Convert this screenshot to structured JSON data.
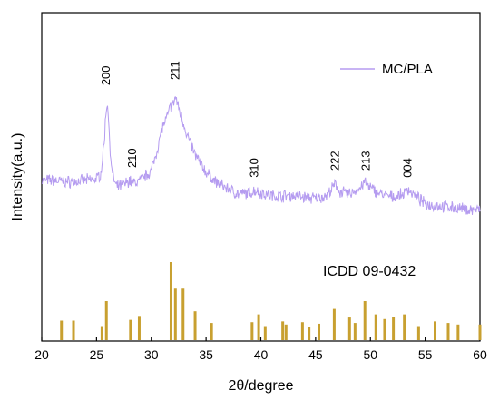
{
  "chart_data": {
    "type": "line",
    "xlabel": "2θ/degree",
    "ylabel": "Intensity(a.u.)",
    "xlim": [
      20,
      60
    ],
    "xticks": [
      "20",
      "25",
      "30",
      "35",
      "40",
      "45",
      "50",
      "55",
      "60"
    ],
    "yticks_shown": false,
    "grid": false,
    "legend": {
      "placement": "top-right",
      "label": "MC/PLA",
      "color": "#b59cf0"
    },
    "series": [
      {
        "name": "MC/PLA",
        "color": "#b59cf0",
        "x": [
          20.0,
          21.0,
          22.0,
          23.0,
          24.0,
          25.0,
          25.4,
          25.7,
          25.85,
          26.0,
          26.15,
          26.4,
          26.8,
          27.5,
          28.0,
          28.4,
          29.0,
          30.0,
          30.6,
          31.0,
          31.4,
          31.7,
          32.0,
          32.2,
          32.5,
          32.9,
          33.3,
          34.0,
          35.0,
          36.0,
          37.0,
          38.0,
          39.0,
          39.5,
          40.0,
          41.0,
          42.0,
          43.0,
          44.0,
          45.0,
          46.0,
          46.5,
          46.8,
          47.2,
          48.0,
          49.0,
          49.5,
          49.9,
          51.0,
          52.0,
          53.0,
          53.4,
          53.8,
          55.0,
          56.0,
          57.0,
          58.0,
          59.0,
          60.0
        ],
        "y": [
          28,
          28,
          27,
          27,
          28,
          29,
          33,
          55,
          75,
          85,
          62,
          34,
          23,
          25,
          28,
          26,
          28,
          35,
          52,
          66,
          72,
          80,
          82,
          88,
          80,
          70,
          60,
          46,
          34,
          26,
          22,
          18,
          19,
          21,
          19,
          17,
          17,
          17,
          16,
          15,
          17,
          22,
          25,
          20,
          18,
          22,
          27,
          23,
          18,
          16,
          18,
          22,
          19,
          11,
          10,
          9,
          8,
          7,
          7
        ]
      }
    ],
    "peak_labels": [
      {
        "text": "200",
        "x": 25.9,
        "y": 96
      },
      {
        "text": "210",
        "x": 28.3,
        "y": 37
      },
      {
        "text": "211",
        "x": 32.2,
        "y": 100
      },
      {
        "text": "310",
        "x": 39.4,
        "y": 30
      },
      {
        "text": "222",
        "x": 46.8,
        "y": 35
      },
      {
        "text": "213",
        "x": 49.6,
        "y": 35
      },
      {
        "text": "004",
        "x": 53.4,
        "y": 30
      }
    ],
    "reference": {
      "label": "ICDD 09-0432",
      "color": "#c8a030",
      "x": [
        21.8,
        22.9,
        25.5,
        25.9,
        28.1,
        28.9,
        31.8,
        32.2,
        32.9,
        34.0,
        35.5,
        39.2,
        39.8,
        40.4,
        42.0,
        42.3,
        43.8,
        44.4,
        45.3,
        46.7,
        48.1,
        48.6,
        49.5,
        50.5,
        51.3,
        52.1,
        53.1,
        54.4,
        55.9,
        57.1,
        58.0,
        60.0
      ],
      "intensity": [
        25,
        25,
        18,
        50,
        26,
        31,
        100,
        66,
        66,
        37,
        22,
        23,
        33,
        18,
        24,
        20,
        23,
        17,
        21,
        40,
        29,
        22,
        50,
        33,
        27,
        30,
        33,
        18,
        24,
        22,
        20,
        20
      ]
    }
  }
}
